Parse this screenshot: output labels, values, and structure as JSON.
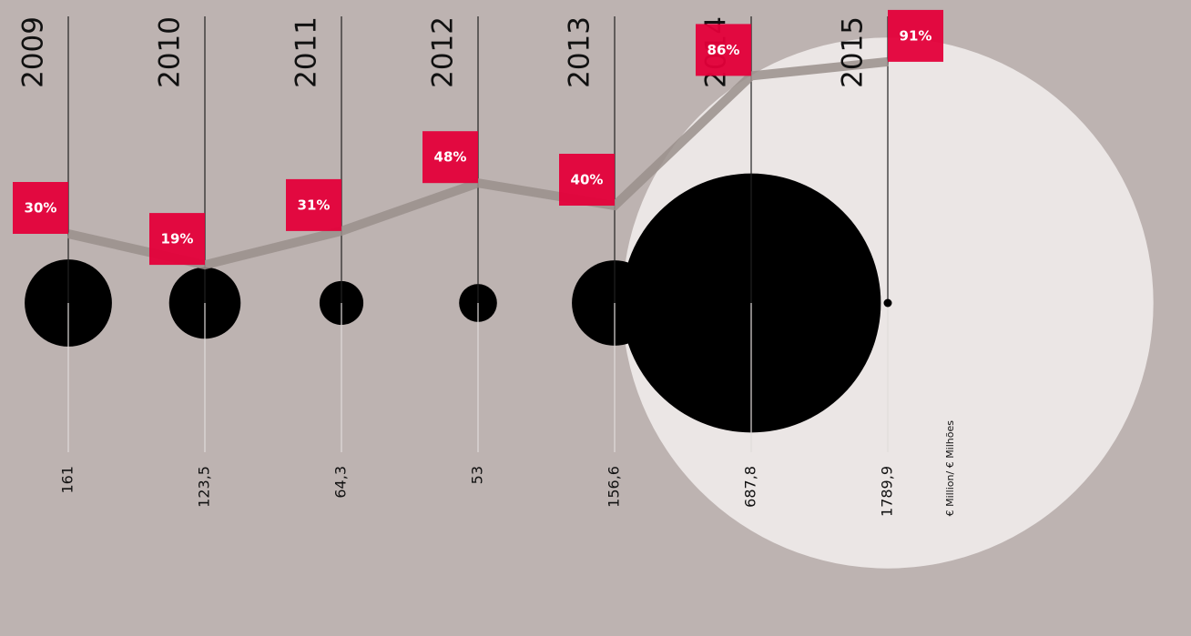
{
  "chart_data": {
    "type": "bubble",
    "categories": [
      "2009",
      "2010",
      "2011",
      "2012",
      "2013",
      "2014",
      "2015"
    ],
    "values": [
      161,
      123.5,
      64.3,
      53,
      156.6,
      687.8,
      1789.9
    ],
    "value_labels": [
      "161",
      "123,5",
      "64,3",
      "53",
      "156,6",
      "687,8",
      "1789,9"
    ],
    "percentages": [
      30,
      19,
      31,
      48,
      40,
      86,
      91
    ],
    "percentage_labels": [
      "30%",
      "19%",
      "31%",
      "48%",
      "40%",
      "86%",
      "91%"
    ],
    "unit_label": "€ Million/ € Milhões",
    "bubble_color": "#000000",
    "highlight_color": "#ebe6e5",
    "line_color": "#9a8f8c",
    "label_color": "#e4003a"
  }
}
